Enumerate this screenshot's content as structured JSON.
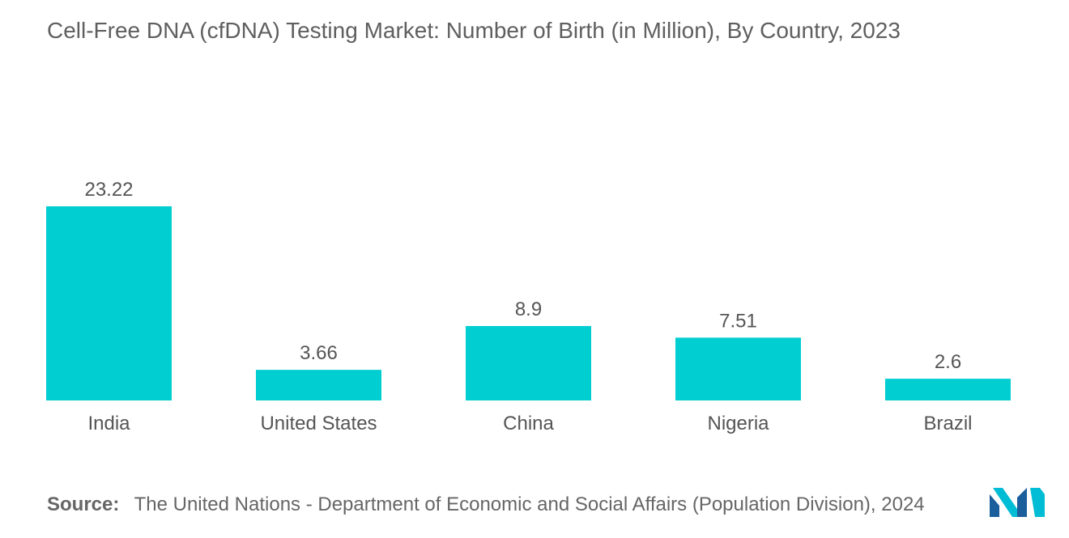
{
  "chart_data": {
    "type": "bar",
    "title": "Cell-Free DNA (cfDNA) Testing Market: Number of Birth (in Million), By Country, 2023",
    "categories": [
      "India",
      "United States",
      "China",
      "Nigeria",
      "Brazil"
    ],
    "values": [
      23.22,
      3.66,
      8.9,
      7.51,
      2.6
    ],
    "value_labels": [
      "23.22",
      "3.66",
      "8.9",
      "7.51",
      "2.6"
    ],
    "xlabel": "",
    "ylabel": "",
    "ylim": [
      0,
      23.22
    ],
    "grid": false,
    "legend": "none",
    "bar_color": "#00CED1"
  },
  "source": {
    "label": "Source:",
    "text": "The United Nations - Department of Economic and Social Affairs (Population Division), 2024"
  },
  "logo": {
    "icon": "mordor-intelligence-logo-icon",
    "colors": [
      "#1a5e9c",
      "#00bcd4"
    ]
  }
}
